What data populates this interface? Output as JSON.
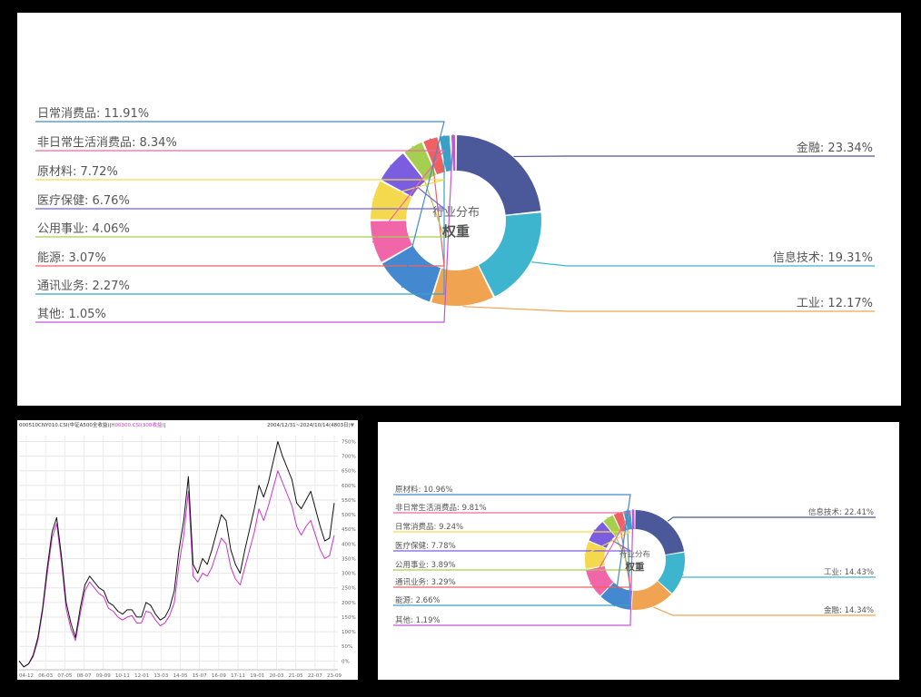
{
  "chart_data": [
    {
      "type": "pie",
      "variant": "donut",
      "center_title": "行业分布",
      "center_subtitle": "权重",
      "categories": [
        "金融",
        "信息技术",
        "工业",
        "日常消费品",
        "非日常生活消费品",
        "原材料",
        "医疗保健",
        "公用事业",
        "能源",
        "通讯业务",
        "其他"
      ],
      "values": [
        23.34,
        19.31,
        12.17,
        11.91,
        8.34,
        7.72,
        6.76,
        4.06,
        3.07,
        2.27,
        1.05
      ],
      "labels": [
        "金融: 23.34%",
        "信息技术: 19.31%",
        "工业: 12.17%",
        "日常消费品: 11.91%",
        "非日常生活消费品: 8.34%",
        "原材料: 7.72%",
        "医疗保健: 6.76%",
        "公用事业: 4.06%",
        "能源: 3.07%",
        "通讯业务: 2.27%",
        "其他: 1.05%"
      ],
      "colors": [
        "#4b5899",
        "#3eb5cf",
        "#f0a452",
        "#4488d0",
        "#f066a8",
        "#f4d94f",
        "#7b5ee0",
        "#a5cf4e",
        "#ef6161",
        "#3aa0c8",
        "#c356d8"
      ]
    },
    {
      "type": "line",
      "title_code": "000510CNY010.CSI(中证A500全收益)",
      "title_separator": "|",
      "title_code2": "H00300.CSI(300收益)",
      "title_tail": "|",
      "date_range": "2004/12/31~2024/10/14(4803日)",
      "dropdown_icon": "▼",
      "x_tick_labels": [
        "04-12",
        "06-03",
        "07-05",
        "08-07",
        "09-09",
        "10-11",
        "12-01",
        "13-03",
        "14-05",
        "15-07",
        "16-09",
        "17-11",
        "19-01",
        "20-03",
        "21-05",
        "22-07",
        "23-09"
      ],
      "y_tick_labels": [
        "0%",
        "50%",
        "100%",
        "150%",
        "200%",
        "250%",
        "300%",
        "350%",
        "400%",
        "450%",
        "500%",
        "550%",
        "600%",
        "650%",
        "700%",
        "750%"
      ],
      "ylim": [
        -30,
        770
      ],
      "series": [
        {
          "name": "000510CNY010.CSI(中证A500全收益)",
          "color": "#111111",
          "values": [
            0,
            -20,
            -10,
            20,
            80,
            180,
            320,
            440,
            490,
            360,
            200,
            130,
            80,
            180,
            260,
            290,
            270,
            250,
            240,
            200,
            190,
            170,
            160,
            175,
            175,
            150,
            150,
            200,
            190,
            160,
            140,
            150,
            180,
            240,
            380,
            480,
            630,
            330,
            300,
            350,
            330,
            380,
            440,
            500,
            480,
            380,
            330,
            300,
            380,
            450,
            520,
            600,
            560,
            610,
            680,
            750,
            700,
            660,
            620,
            540,
            520,
            550,
            580,
            520,
            460,
            410,
            420,
            540
          ]
        },
        {
          "name": "H00300.CSI(300收益)",
          "color": "#cc33cc",
          "values": [
            0,
            -20,
            -10,
            15,
            70,
            170,
            300,
            420,
            470,
            340,
            180,
            110,
            70,
            160,
            240,
            270,
            250,
            230,
            220,
            180,
            170,
            150,
            140,
            150,
            155,
            130,
            130,
            170,
            165,
            140,
            120,
            130,
            155,
            200,
            330,
            430,
            580,
            290,
            270,
            300,
            290,
            320,
            370,
            420,
            400,
            320,
            280,
            260,
            320,
            380,
            440,
            520,
            480,
            530,
            590,
            650,
            610,
            570,
            530,
            460,
            430,
            460,
            480,
            430,
            380,
            350,
            360,
            430
          ]
        }
      ]
    },
    {
      "type": "pie",
      "variant": "donut",
      "center_title": "行业分布",
      "center_subtitle": "权重",
      "categories": [
        "信息技术",
        "工业",
        "金融",
        "原材料",
        "非日常生活消费品",
        "日常消费品",
        "医疗保健",
        "公用事业",
        "通讯业务",
        "能源",
        "其他"
      ],
      "values": [
        22.41,
        14.43,
        14.34,
        10.96,
        9.81,
        9.24,
        7.78,
        3.89,
        3.29,
        2.66,
        1.19
      ],
      "labels": [
        "信息技术: 22.41%",
        "工业: 14.43%",
        "金融: 14.34%",
        "原材料: 10.96%",
        "非日常生活消费品: 9.81%",
        "日常消费品: 9.24%",
        "医疗保健: 7.78%",
        "公用事业: 3.89%",
        "通讯业务: 3.29%",
        "能源: 2.66%",
        "其他: 1.19%"
      ],
      "colors": [
        "#4b5899",
        "#3eb5cf",
        "#f0a452",
        "#4488d0",
        "#f066a8",
        "#f4d94f",
        "#7b5ee0",
        "#a5cf4e",
        "#ef6161",
        "#3aa0c8",
        "#c356d8"
      ]
    }
  ]
}
